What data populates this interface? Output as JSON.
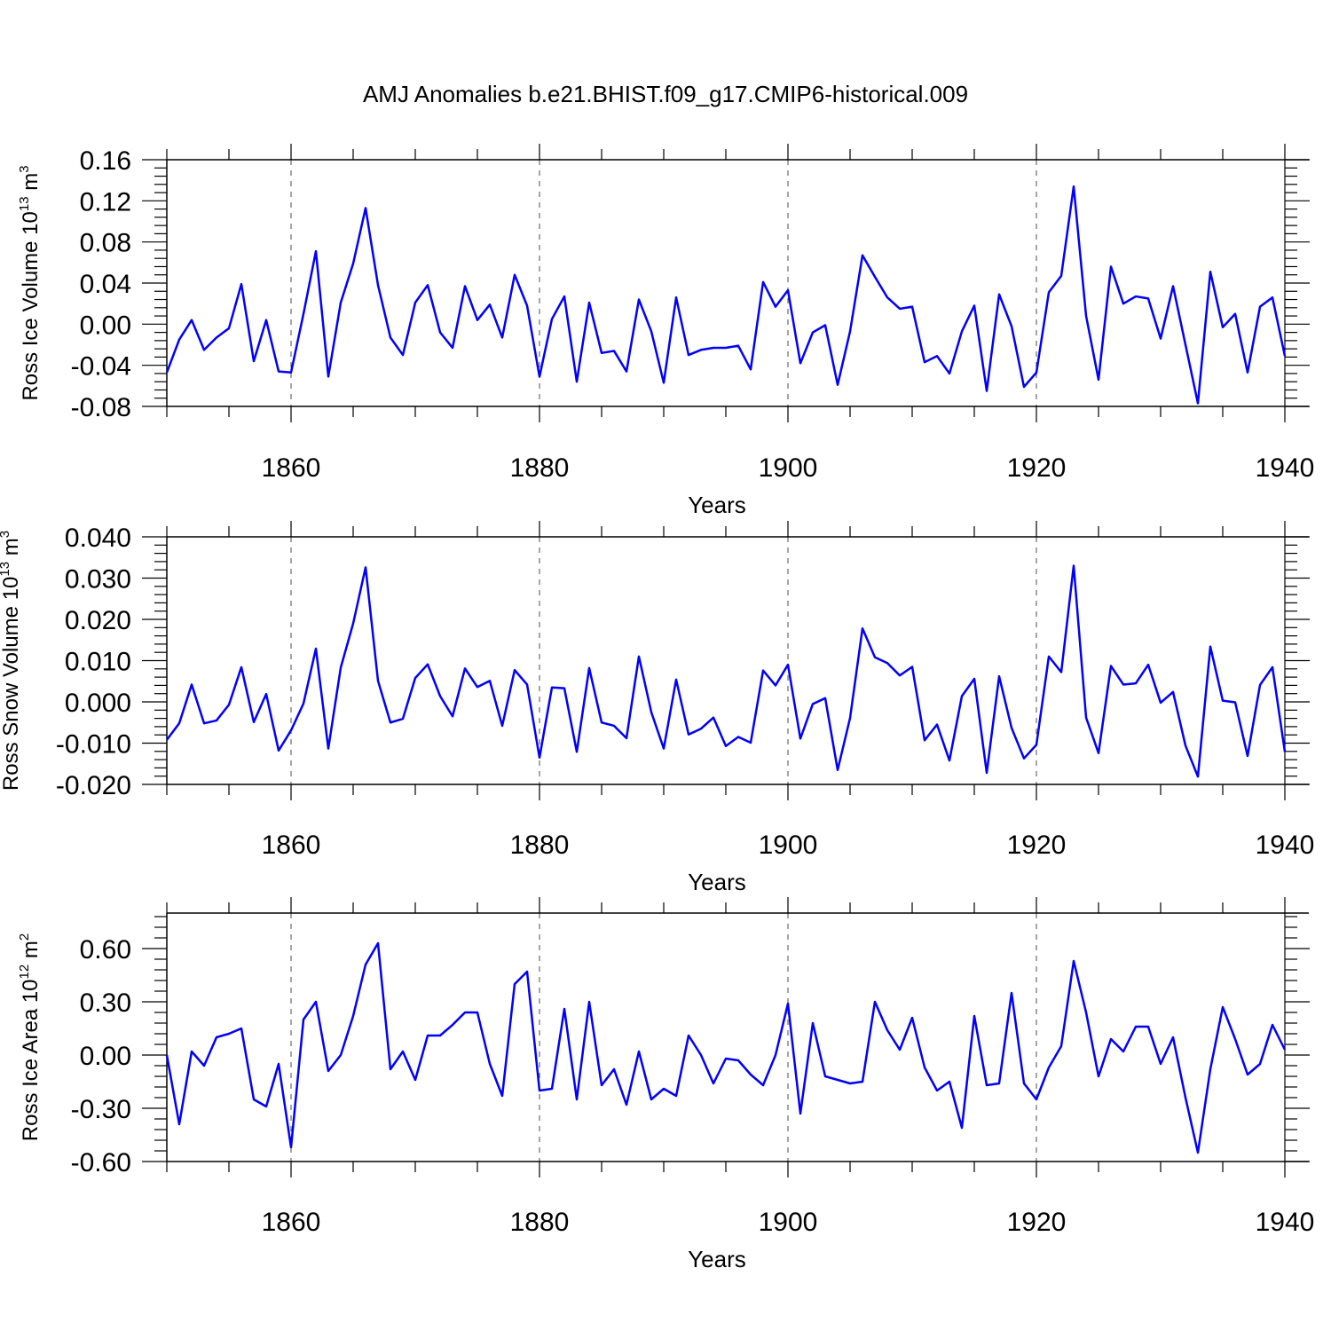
{
  "title": "AMJ Anomalies b.e21.BHIST.f09_g17.CMIP6-historical.009",
  "colors": {
    "line": "#0000ff",
    "axis": "#000000",
    "grid": "#000000",
    "background": "#ffffff"
  },
  "chart_data": [
    {
      "type": "line",
      "ylabel": {
        "main": "Ross Ice Volume 10",
        "sup": "13",
        "tail": " m",
        "unit_sup": "3"
      },
      "xlabel": "Years",
      "xlim": [
        1850,
        1940
      ],
      "ylim": [
        -0.08,
        0.16
      ],
      "yticks": [
        "-0.08",
        "-0.04",
        "0.00",
        "0.04",
        "0.08",
        "0.12",
        "0.16"
      ],
      "xticks": [
        "1860",
        "1880",
        "1900",
        "1920",
        "1940"
      ],
      "grid": "vertical dashed at major x ticks",
      "x_start": 1850,
      "values": [
        -0.047,
        -0.015,
        0.004,
        -0.025,
        -0.013,
        -0.004,
        0.039,
        -0.036,
        0.004,
        -0.046,
        -0.047,
        0.01,
        0.071,
        -0.051,
        0.021,
        0.059,
        0.113,
        0.038,
        -0.013,
        -0.03,
        0.021,
        0.038,
        -0.008,
        -0.023,
        0.037,
        0.004,
        0.019,
        -0.013,
        0.048,
        0.018,
        -0.051,
        0.005,
        0.027,
        -0.056,
        0.021,
        -0.028,
        -0.026,
        -0.046,
        0.024,
        -0.007,
        -0.057,
        0.026,
        -0.03,
        -0.025,
        -0.023,
        -0.023,
        -0.021,
        -0.044,
        0.041,
        0.017,
        0.033,
        -0.038,
        -0.008,
        -0.001,
        -0.059,
        -0.007,
        0.067,
        0.046,
        0.026,
        0.015,
        0.017,
        -0.037,
        -0.031,
        -0.048,
        -0.007,
        0.018,
        -0.065,
        0.029,
        -0.002,
        -0.061,
        -0.047,
        0.031,
        0.047,
        0.134,
        0.008,
        -0.054,
        0.056,
        0.02,
        0.027,
        0.025,
        -0.014,
        0.037,
        -0.02,
        -0.077,
        0.051,
        -0.003,
        0.01,
        -0.047,
        0.017,
        0.026,
        -0.031
      ]
    },
    {
      "type": "line",
      "ylabel": {
        "main": "Ross Snow Volume 10",
        "sup": "13",
        "tail": " m",
        "unit_sup": "3"
      },
      "xlabel": "Years",
      "xlim": [
        1850,
        1940
      ],
      "ylim": [
        -0.02,
        0.04
      ],
      "yticks": [
        "-0.020",
        "-0.010",
        "0.000",
        "0.010",
        "0.020",
        "0.030",
        "0.040"
      ],
      "xticks": [
        "1860",
        "1880",
        "1900",
        "1920",
        "1940"
      ],
      "grid": "vertical dashed at major x ticks",
      "x_start": 1850,
      "values": [
        -0.0092,
        -0.0052,
        0.0042,
        -0.0052,
        -0.0045,
        -0.0007,
        0.0084,
        -0.0049,
        0.0019,
        -0.0118,
        -0.0069,
        -0.0004,
        0.0129,
        -0.0113,
        0.0083,
        0.019,
        0.0326,
        0.0051,
        -0.005,
        -0.0041,
        0.0058,
        0.0091,
        0.0014,
        -0.0035,
        0.0081,
        0.0036,
        0.0051,
        -0.0058,
        0.0077,
        0.0042,
        -0.0135,
        0.0035,
        0.0033,
        -0.0121,
        0.0082,
        -0.005,
        -0.0058,
        -0.0088,
        0.011,
        -0.0025,
        -0.0113,
        0.0054,
        -0.0079,
        -0.0065,
        -0.0038,
        -0.0107,
        -0.0085,
        -0.0099,
        0.0076,
        0.004,
        0.009,
        -0.0089,
        -0.0005,
        0.0009,
        -0.0165,
        -0.0039,
        0.0178,
        0.0108,
        0.0094,
        0.0064,
        0.0085,
        -0.0093,
        -0.0055,
        -0.0142,
        0.0014,
        0.0056,
        -0.0172,
        0.0062,
        -0.0063,
        -0.0137,
        -0.0104,
        0.011,
        0.0072,
        0.033,
        -0.0038,
        -0.0124,
        0.0087,
        0.0042,
        0.0045,
        0.009,
        -0.0002,
        0.0024,
        -0.0106,
        -0.0181,
        0.0134,
        0.0003,
        -0.0001,
        -0.0131,
        0.0041,
        0.0084,
        -0.0121
      ]
    },
    {
      "type": "line",
      "ylabel": {
        "main": "Ross Ice Area 10",
        "sup": "12",
        "tail": " m",
        "unit_sup": "2"
      },
      "xlabel": "Years",
      "xlim": [
        1850,
        1940
      ],
      "ylim": [
        -0.6,
        0.8
      ],
      "yticks": [
        "-0.60",
        "-0.30",
        "0.00",
        "0.30",
        "0.60"
      ],
      "ytick_values": [
        -0.6,
        -0.3,
        0.0,
        0.3,
        0.6
      ],
      "xticks": [
        "1860",
        "1880",
        "1900",
        "1920",
        "1940"
      ],
      "grid": "vertical dashed at major x ticks",
      "x_start": 1850,
      "values": [
        0.0,
        -0.39,
        0.02,
        -0.06,
        0.1,
        0.12,
        0.15,
        -0.25,
        -0.29,
        -0.05,
        -0.52,
        0.2,
        0.3,
        -0.09,
        0.0,
        0.22,
        0.51,
        0.63,
        -0.08,
        0.02,
        -0.14,
        0.11,
        0.11,
        0.17,
        0.24,
        0.24,
        -0.05,
        -0.23,
        0.4,
        0.47,
        -0.2,
        -0.19,
        0.26,
        -0.25,
        0.3,
        -0.17,
        -0.08,
        -0.28,
        0.02,
        -0.25,
        -0.19,
        -0.23,
        0.11,
        0.0,
        -0.16,
        -0.02,
        -0.03,
        -0.11,
        -0.17,
        0.0,
        0.29,
        -0.33,
        0.18,
        -0.12,
        -0.14,
        -0.16,
        -0.15,
        0.3,
        0.14,
        0.03,
        0.21,
        -0.07,
        -0.2,
        -0.15,
        -0.41,
        0.22,
        -0.17,
        -0.16,
        0.35,
        -0.16,
        -0.25,
        -0.07,
        0.05,
        0.53,
        0.24,
        -0.12,
        0.09,
        0.02,
        0.16,
        0.16,
        -0.05,
        0.1,
        -0.24,
        -0.55,
        -0.08,
        0.27,
        0.09,
        -0.11,
        -0.05,
        0.17,
        0.03
      ]
    }
  ]
}
